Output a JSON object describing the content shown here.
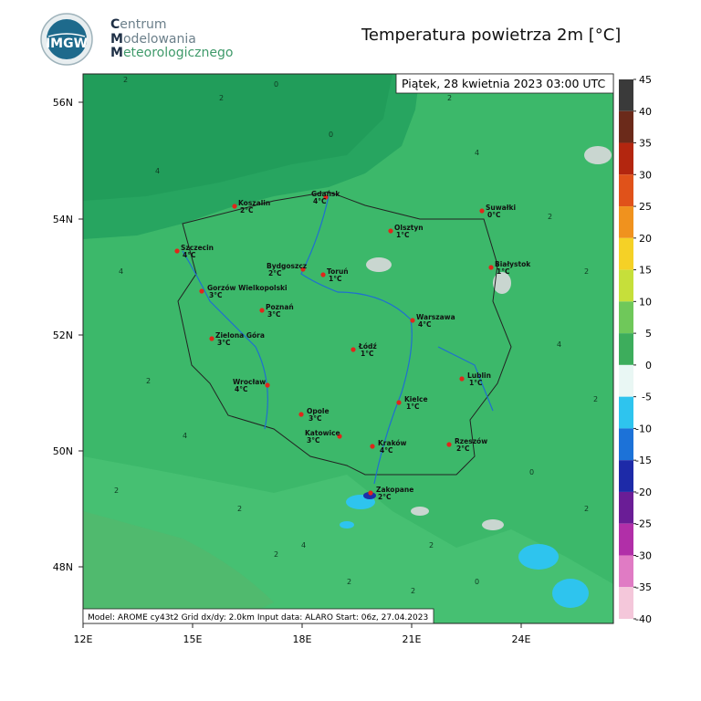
{
  "header": {
    "logo_text": "IMGW",
    "institute": [
      "Centrum",
      "Modelowania",
      "Meteorologicznego"
    ],
    "title": "Temperatura powietrza 2m [°C]"
  },
  "map": {
    "date": "Piątek, 28 kwietnia 2023 03:00 UTC",
    "lat_labels": [
      "56N",
      "54N",
      "52N",
      "50N",
      "48N"
    ],
    "lon_labels": [
      "12E",
      "15E",
      "18E",
      "21E",
      "24E"
    ],
    "footer": "Model: AROME cy43t2  Grid dx/dy: 2.0km  Input data: ALARO  Start: 06z, 27.04.2023",
    "cities": [
      {
        "name": "Koszalin",
        "temp": "2°C"
      },
      {
        "name": "Gdańsk",
        "temp": "4°C"
      },
      {
        "name": "Suwałki",
        "temp": "0°C"
      },
      {
        "name": "Szczecin",
        "temp": "4°C"
      },
      {
        "name": "Olsztyn",
        "temp": "1°C"
      },
      {
        "name": "Bydgoszcz",
        "temp": "2°C"
      },
      {
        "name": "Toruń",
        "temp": "1°C"
      },
      {
        "name": "Białystok",
        "temp": "1°C"
      },
      {
        "name": "Gorzów Wielkopolski",
        "temp": "3°C"
      },
      {
        "name": "Poznań",
        "temp": "3°C"
      },
      {
        "name": "Warszawa",
        "temp": "4°C"
      },
      {
        "name": "Zielona Góra",
        "temp": "3°C"
      },
      {
        "name": "Łódź",
        "temp": "1°C"
      },
      {
        "name": "Lublin",
        "temp": "1°C"
      },
      {
        "name": "Wrocław",
        "temp": "4°C"
      },
      {
        "name": "Kielce",
        "temp": "1°C"
      },
      {
        "name": "Opole",
        "temp": "3°C"
      },
      {
        "name": "Katowice",
        "temp": "3°C"
      },
      {
        "name": "Kraków",
        "temp": "4°C"
      },
      {
        "name": "Rzeszów",
        "temp": "2°C"
      },
      {
        "name": "Zakopane",
        "temp": "2°C"
      }
    ],
    "contour_labels": [
      "2",
      "4",
      "2",
      "0",
      "4",
      "2",
      "2",
      "4",
      "2",
      "2",
      "0",
      "2",
      "4",
      "2",
      "2",
      "4",
      "2",
      "0",
      "2",
      "2",
      "4",
      "2",
      "2",
      "0"
    ]
  },
  "colorbar": {
    "ticks": [
      45,
      40,
      35,
      30,
      25,
      20,
      15,
      10,
      5,
      0,
      -5,
      -10,
      -15,
      -20,
      -25,
      -30,
      -35,
      -40
    ],
    "colors": [
      "#3a3a3a",
      "#6b2a1a",
      "#b3260f",
      "#e0521a",
      "#f0921e",
      "#f5d126",
      "#c6df3a",
      "#6fc85a",
      "#3dad5c",
      "#e9f7f4",
      "#2ec4ee",
      "#1c72d8",
      "#1d2aa8",
      "#6a1d96",
      "#b12fa8",
      "#e07bc4",
      "#f4c7da"
    ]
  }
}
